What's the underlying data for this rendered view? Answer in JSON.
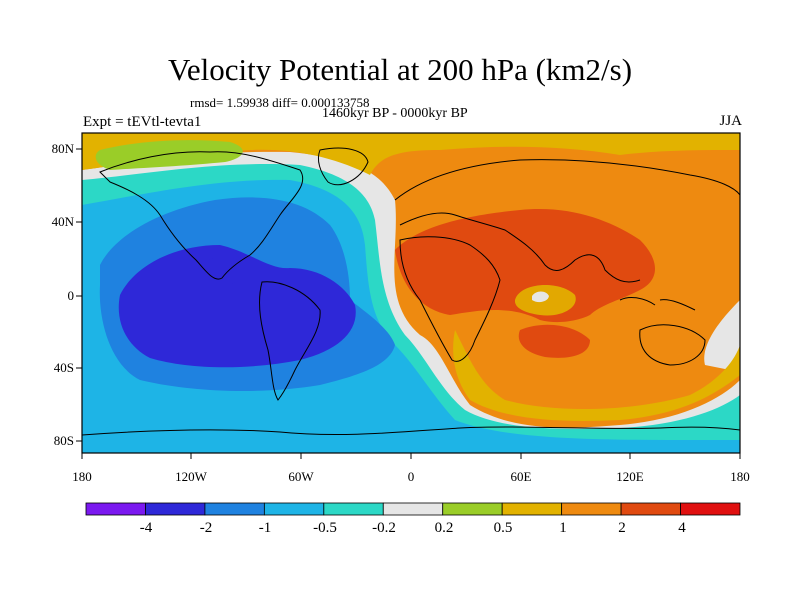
{
  "title": "Velocity Potential at 200 hPa (km2/s)",
  "stats": "rmsd= 1.59938 diff= 0.000133758",
  "period": "1460kyr BP - 0000kyr BP",
  "experiment": "Expt = tEVtl-tevta1",
  "season": "JJA",
  "lat_ticks": [
    "80N",
    "40N",
    "0",
    "40S",
    "80S"
  ],
  "lon_ticks": [
    "180",
    "120W",
    "60W",
    "0",
    "60E",
    "120E",
    "180"
  ],
  "colorbar": {
    "labels": [
      "-4",
      "-2",
      "-1",
      "-0.5",
      "-0.2",
      "0.2",
      "0.5",
      "1",
      "2",
      "4"
    ],
    "colors": [
      "#7B19F0",
      "#2E28D8",
      "#1F82E0",
      "#1EB4E6",
      "#2CD8C6",
      "#E6E6E6",
      "#9ACD28",
      "#E2B200",
      "#EE8A10",
      "#E04A10",
      "#E01010"
    ]
  },
  "map": {
    "background": "#EE8A10",
    "regions": [
      {
        "name": "neg-0p2",
        "color": "#E6E6E6"
      },
      {
        "name": "neg-0p5",
        "color": "#2CD8C6"
      },
      {
        "name": "neg-1",
        "color": "#1EB4E6"
      },
      {
        "name": "neg-2",
        "color": "#1F82E0"
      },
      {
        "name": "neg-4",
        "color": "#2E28D8"
      },
      {
        "name": "pos-1",
        "color": "#E2B200"
      },
      {
        "name": "pos-0p5",
        "color": "#9ACD28"
      },
      {
        "name": "pos-2",
        "color": "#EE8A10"
      },
      {
        "name": "pos-4",
        "color": "#E04A10"
      }
    ]
  }
}
